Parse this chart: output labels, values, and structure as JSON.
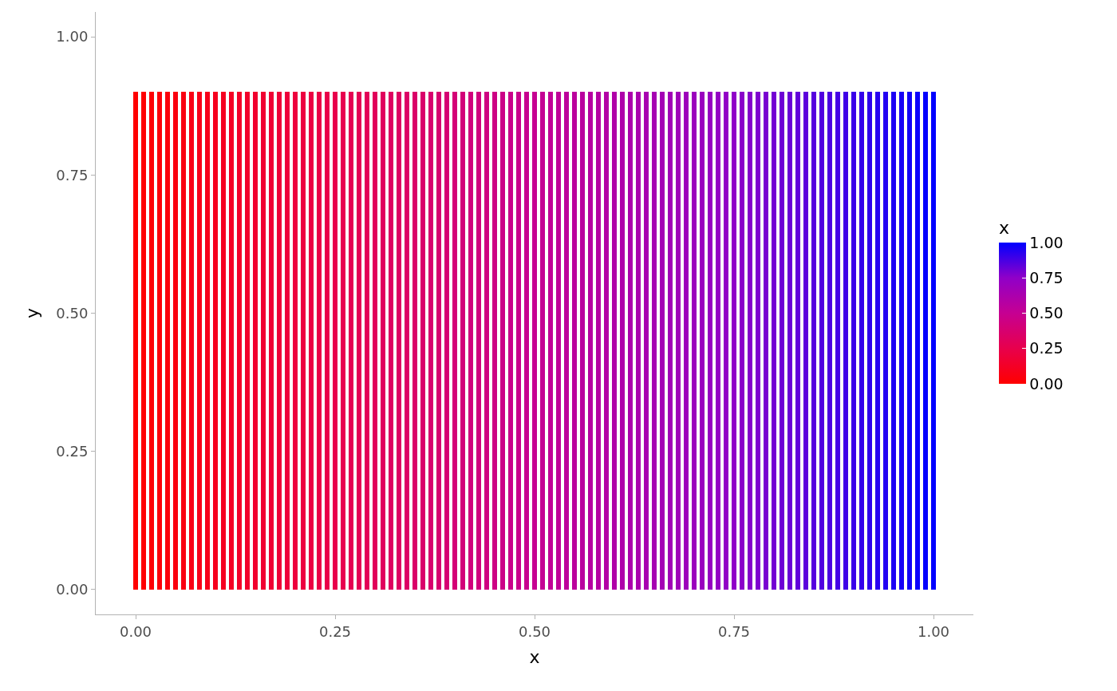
{
  "chart_data": {
    "type": "bar",
    "xlabel": "x",
    "ylabel": "y",
    "clabel": "x",
    "x": [
      0,
      0.01,
      0.02,
      0.03,
      0.04,
      0.05,
      0.06,
      0.07,
      0.08,
      0.09,
      0.1,
      0.11,
      0.12,
      0.13,
      0.14,
      0.15,
      0.16,
      0.17,
      0.18,
      0.19,
      0.2,
      0.21,
      0.22,
      0.23,
      0.24,
      0.25,
      0.26,
      0.27,
      0.28,
      0.29,
      0.3,
      0.31,
      0.32,
      0.33,
      0.34,
      0.35,
      0.36,
      0.37,
      0.38,
      0.39,
      0.4,
      0.41,
      0.42,
      0.43,
      0.44,
      0.45,
      0.46,
      0.47,
      0.48,
      0.49,
      0.5,
      0.51,
      0.52,
      0.53,
      0.54,
      0.55,
      0.56,
      0.57,
      0.58,
      0.59,
      0.6,
      0.61,
      0.62,
      0.63,
      0.64,
      0.65,
      0.66,
      0.67,
      0.68,
      0.69,
      0.7,
      0.71,
      0.72,
      0.73,
      0.74,
      0.75,
      0.76,
      0.77,
      0.78,
      0.79,
      0.8,
      0.81,
      0.82,
      0.83,
      0.84,
      0.85,
      0.86,
      0.87,
      0.88,
      0.89,
      0.9,
      0.91,
      0.92,
      0.93,
      0.94,
      0.95,
      0.96,
      0.97,
      0.98,
      0.99,
      1
    ],
    "values": [
      0.9,
      0.9,
      0.9,
      0.9,
      0.9,
      0.9,
      0.9,
      0.9,
      0.9,
      0.9,
      0.9,
      0.9,
      0.9,
      0.9,
      0.9,
      0.9,
      0.9,
      0.9,
      0.9,
      0.9,
      0.9,
      0.9,
      0.9,
      0.9,
      0.9,
      0.9,
      0.9,
      0.9,
      0.9,
      0.9,
      0.9,
      0.9,
      0.9,
      0.9,
      0.9,
      0.9,
      0.9,
      0.9,
      0.9,
      0.9,
      0.9,
      0.9,
      0.9,
      0.9,
      0.9,
      0.9,
      0.9,
      0.9,
      0.9,
      0.9,
      0.9,
      0.9,
      0.9,
      0.9,
      0.9,
      0.9,
      0.9,
      0.9,
      0.9,
      0.9,
      0.9,
      0.9,
      0.9,
      0.9,
      0.9,
      0.9,
      0.9,
      0.9,
      0.9,
      0.9,
      0.9,
      0.9,
      0.9,
      0.9,
      0.9,
      0.9,
      0.9,
      0.9,
      0.9,
      0.9,
      0.9,
      0.9,
      0.9,
      0.9,
      0.9,
      0.9,
      0.9,
      0.9,
      0.9,
      0.9,
      0.9,
      0.9,
      0.9,
      0.9,
      0.9,
      0.9,
      0.9,
      0.9,
      0.9,
      0.9,
      0.9
    ],
    "cvalues": [
      0,
      0.01,
      0.02,
      0.03,
      0.04,
      0.05,
      0.06,
      0.07,
      0.08,
      0.09,
      0.1,
      0.11,
      0.12,
      0.13,
      0.14,
      0.15,
      0.16,
      0.17,
      0.18,
      0.19,
      0.2,
      0.21,
      0.22,
      0.23,
      0.24,
      0.25,
      0.26,
      0.27,
      0.28,
      0.29,
      0.3,
      0.31,
      0.32,
      0.33,
      0.34,
      0.35,
      0.36,
      0.37,
      0.38,
      0.39,
      0.4,
      0.41,
      0.42,
      0.43,
      0.44,
      0.45,
      0.46,
      0.47,
      0.48,
      0.49,
      0.5,
      0.51,
      0.52,
      0.53,
      0.54,
      0.55,
      0.56,
      0.57,
      0.58,
      0.59,
      0.6,
      0.61,
      0.62,
      0.63,
      0.64,
      0.65,
      0.66,
      0.67,
      0.68,
      0.69,
      0.7,
      0.71,
      0.72,
      0.73,
      0.74,
      0.75,
      0.76,
      0.77,
      0.78,
      0.79,
      0.8,
      0.81,
      0.82,
      0.83,
      0.84,
      0.85,
      0.86,
      0.87,
      0.88,
      0.89,
      0.9,
      0.91,
      0.92,
      0.93,
      0.94,
      0.95,
      0.96,
      0.97,
      0.98,
      0.99,
      1
    ],
    "xlim": [
      -0.05,
      1.05
    ],
    "xticks": [
      {
        "value": 0,
        "label": "0.00"
      },
      {
        "value": 0.25,
        "label": "0.25"
      },
      {
        "value": 0.5,
        "label": "0.50"
      },
      {
        "value": 0.75,
        "label": "0.75"
      },
      {
        "value": 1,
        "label": "1.00"
      }
    ],
    "ylim": [
      -0.045,
      1.045
    ],
    "yticks": [
      {
        "value": 0,
        "label": "0.00"
      },
      {
        "value": 0.25,
        "label": "0.25"
      },
      {
        "value": 0.5,
        "label": "0.50"
      },
      {
        "value": 0.75,
        "label": "0.75"
      },
      {
        "value": 1,
        "label": "1.00"
      }
    ],
    "clim": [
      0,
      1
    ],
    "cticks": [
      {
        "value": 0,
        "label": "0.00"
      },
      {
        "value": 0.25,
        "label": "0.25"
      },
      {
        "value": 0.5,
        "label": "0.50"
      },
      {
        "value": 0.75,
        "label": "0.75"
      },
      {
        "value": 1,
        "label": "1.00"
      }
    ],
    "legend": false
  }
}
